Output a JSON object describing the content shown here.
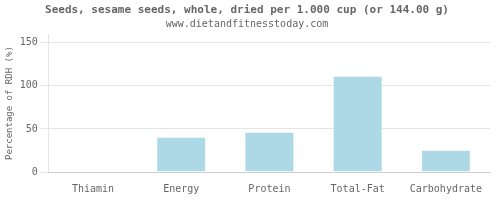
{
  "chart_data": {
    "type": "bar",
    "title": "Seeds, sesame seeds, whole, dried per 1.000 cup (or 144.00 g)",
    "subtitle": "www.dietandfitnesstoday.com",
    "categories": [
      "Thiamin",
      "Energy",
      "Protein",
      "Total-Fat",
      "Carbohydrate"
    ],
    "values": [
      0.5,
      40,
      46,
      111,
      25
    ],
    "color": "#add8e6",
    "ylabel": "Percentage of RDH (%)",
    "ylim": [
      0,
      160
    ],
    "yticks": [
      0,
      50,
      100,
      150
    ],
    "grid": true
  }
}
